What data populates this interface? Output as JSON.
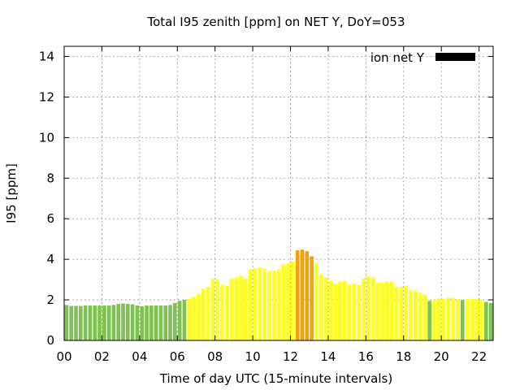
{
  "chart_data": {
    "type": "bar",
    "title": "Total I95 zenith [ppm] on NET Y, DoY=053",
    "xlabel": "Time of day UTC (15-minute intervals)",
    "ylabel": "I95 [ppm]",
    "xlim": [
      0,
      22.75
    ],
    "ylim": [
      0,
      14.5
    ],
    "x_ticks": [
      "00",
      "02",
      "04",
      "06",
      "08",
      "10",
      "12",
      "14",
      "16",
      "18",
      "20",
      "22"
    ],
    "y_ticks": [
      "0",
      "2",
      "4",
      "6",
      "8",
      "10",
      "12",
      "14"
    ],
    "grid": true,
    "legend": {
      "position": "top-right",
      "label": "ion net Y",
      "color": "#000000"
    },
    "bar_interval_hours": 0.25,
    "colors": {
      "green": "#7ec24f",
      "yellow": "#ffff1f",
      "orange": "#f5a20a"
    },
    "values": [
      1.75,
      1.7,
      1.7,
      1.7,
      1.72,
      1.72,
      1.72,
      1.72,
      1.72,
      1.72,
      1.75,
      1.8,
      1.82,
      1.8,
      1.78,
      1.72,
      1.68,
      1.72,
      1.72,
      1.72,
      1.72,
      1.72,
      1.75,
      1.85,
      1.95,
      2.0,
      2.05,
      2.15,
      2.3,
      2.55,
      2.65,
      3.05,
      3.0,
      2.75,
      2.7,
      3.05,
      3.1,
      3.2,
      3.05,
      3.5,
      3.55,
      3.6,
      3.55,
      3.4,
      3.45,
      3.5,
      3.75,
      3.8,
      3.9,
      4.45,
      4.48,
      4.4,
      4.15,
      3.8,
      3.25,
      3.1,
      2.95,
      2.8,
      2.9,
      2.95,
      2.75,
      2.8,
      2.75,
      3.05,
      3.15,
      3.1,
      2.85,
      2.85,
      2.9,
      2.9,
      2.65,
      2.65,
      2.7,
      2.5,
      2.45,
      2.35,
      2.25,
      1.95,
      2.0,
      2.05,
      2.05,
      2.1,
      2.1,
      2.05,
      2.0,
      2.05,
      2.05,
      2.05,
      2.0,
      1.9,
      1.85
    ],
    "bar_colors": [
      "green",
      "green",
      "green",
      "green",
      "green",
      "green",
      "green",
      "green",
      "green",
      "green",
      "green",
      "green",
      "green",
      "green",
      "green",
      "green",
      "green",
      "green",
      "green",
      "green",
      "green",
      "green",
      "green",
      "green",
      "green",
      "green",
      "yellow",
      "yellow",
      "yellow",
      "yellow",
      "yellow",
      "yellow",
      "yellow",
      "yellow",
      "yellow",
      "yellow",
      "yellow",
      "yellow",
      "yellow",
      "yellow",
      "yellow",
      "yellow",
      "yellow",
      "yellow",
      "yellow",
      "yellow",
      "yellow",
      "yellow",
      "yellow",
      "orange",
      "orange",
      "orange",
      "orange",
      "yellow",
      "yellow",
      "yellow",
      "yellow",
      "yellow",
      "yellow",
      "yellow",
      "yellow",
      "yellow",
      "yellow",
      "yellow",
      "yellow",
      "yellow",
      "yellow",
      "yellow",
      "yellow",
      "yellow",
      "yellow",
      "yellow",
      "yellow",
      "yellow",
      "yellow",
      "yellow",
      "yellow",
      "green",
      "yellow",
      "yellow",
      "yellow",
      "yellow",
      "yellow",
      "yellow",
      "green",
      "yellow",
      "yellow",
      "yellow",
      "yellow",
      "green",
      "green"
    ]
  }
}
